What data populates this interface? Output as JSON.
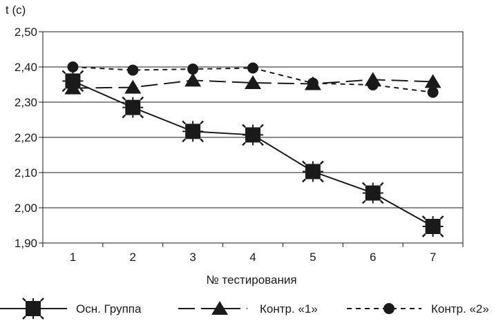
{
  "chart_data": {
    "type": "line",
    "ylabel": "t (с)",
    "xlabel": "№ тестирования",
    "x": [
      1,
      2,
      3,
      4,
      5,
      6,
      7
    ],
    "ylim": [
      1.9,
      2.5
    ],
    "yticks": [
      "1,90",
      "2,00",
      "2,10",
      "2,20",
      "2,30",
      "2,40",
      "2,50"
    ],
    "ytick_values": [
      1.9,
      2.0,
      2.1,
      2.2,
      2.3,
      2.4,
      2.5
    ],
    "grid": "horizontal",
    "legend_position": "bottom",
    "series": [
      {
        "name": "Осн. Группа",
        "marker": "square",
        "line": "solid",
        "values": [
          2.36,
          2.285,
          2.217,
          2.207,
          2.103,
          2.042,
          1.947
        ]
      },
      {
        "name": "Контр. «1»",
        "marker": "triangle",
        "line": "long-dash",
        "values": [
          2.34,
          2.342,
          2.362,
          2.355,
          2.352,
          2.364,
          2.358
        ]
      },
      {
        "name": "Контр. «2»",
        "marker": "circle",
        "line": "short-dash",
        "values": [
          2.4,
          2.391,
          2.394,
          2.397,
          2.354,
          2.349,
          2.328
        ]
      }
    ],
    "colors": {
      "ink": "#1a1a1a",
      "grid": "#1a1a1a"
    }
  }
}
